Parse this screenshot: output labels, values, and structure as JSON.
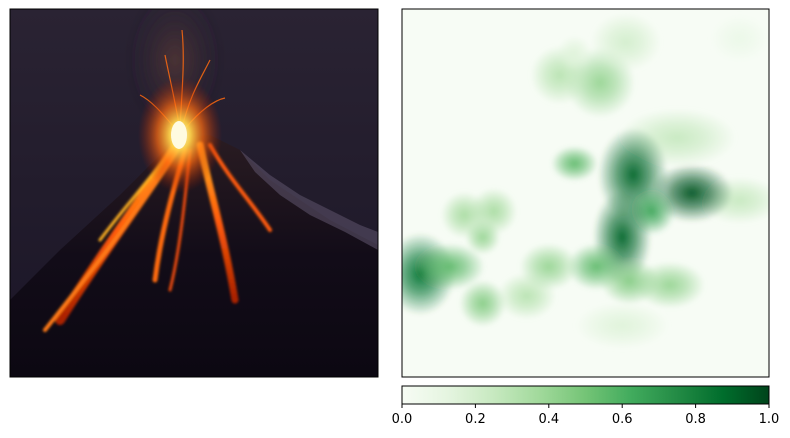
{
  "chart_data": [
    {
      "type": "image",
      "description_visible": false,
      "axes_ticks": false,
      "frame": true
    },
    {
      "type": "heatmap",
      "colormap": "Greens",
      "axes_ticks": false,
      "frame": true,
      "value_range": [
        0,
        1
      ],
      "blobs": [
        {
          "cx": 0.54,
          "cy": 0.2,
          "sx": 0.06,
          "sy": 0.06,
          "v": 0.4
        },
        {
          "cx": 0.43,
          "cy": 0.18,
          "sx": 0.05,
          "sy": 0.05,
          "v": 0.3
        },
        {
          "cx": 0.61,
          "cy": 0.09,
          "sx": 0.06,
          "sy": 0.05,
          "v": 0.2
        },
        {
          "cx": 0.47,
          "cy": 0.12,
          "sx": 0.03,
          "sy": 0.03,
          "v": 0.15
        },
        {
          "cx": 0.92,
          "cy": 0.08,
          "sx": 0.05,
          "sy": 0.04,
          "v": 0.08
        },
        {
          "cx": 0.75,
          "cy": 0.35,
          "sx": 0.1,
          "sy": 0.05,
          "v": 0.25
        },
        {
          "cx": 0.92,
          "cy": 0.52,
          "sx": 0.07,
          "sy": 0.04,
          "v": 0.25
        },
        {
          "cx": 0.63,
          "cy": 0.45,
          "sx": 0.06,
          "sy": 0.08,
          "v": 0.9
        },
        {
          "cx": 0.47,
          "cy": 0.42,
          "sx": 0.04,
          "sy": 0.03,
          "v": 0.55
        },
        {
          "cx": 0.79,
          "cy": 0.5,
          "sx": 0.07,
          "sy": 0.05,
          "v": 0.95
        },
        {
          "cx": 0.68,
          "cy": 0.55,
          "sx": 0.04,
          "sy": 0.04,
          "v": 0.65
        },
        {
          "cx": 0.6,
          "cy": 0.62,
          "sx": 0.05,
          "sy": 0.08,
          "v": 0.9
        },
        {
          "cx": 0.53,
          "cy": 0.7,
          "sx": 0.05,
          "sy": 0.04,
          "v": 0.55
        },
        {
          "cx": 0.62,
          "cy": 0.74,
          "sx": 0.05,
          "sy": 0.04,
          "v": 0.45
        },
        {
          "cx": 0.73,
          "cy": 0.75,
          "sx": 0.06,
          "sy": 0.04,
          "v": 0.4
        },
        {
          "cx": 0.6,
          "cy": 0.86,
          "sx": 0.08,
          "sy": 0.04,
          "v": 0.15
        },
        {
          "cx": 0.05,
          "cy": 0.72,
          "sx": 0.06,
          "sy": 0.07,
          "v": 0.85
        },
        {
          "cx": 0.13,
          "cy": 0.7,
          "sx": 0.06,
          "sy": 0.04,
          "v": 0.55
        },
        {
          "cx": 0.17,
          "cy": 0.56,
          "sx": 0.04,
          "sy": 0.04,
          "v": 0.35
        },
        {
          "cx": 0.25,
          "cy": 0.55,
          "sx": 0.04,
          "sy": 0.04,
          "v": 0.35
        },
        {
          "cx": 0.22,
          "cy": 0.8,
          "sx": 0.04,
          "sy": 0.04,
          "v": 0.45
        },
        {
          "cx": 0.34,
          "cy": 0.78,
          "sx": 0.05,
          "sy": 0.04,
          "v": 0.3
        },
        {
          "cx": 0.4,
          "cy": 0.7,
          "sx": 0.05,
          "sy": 0.04,
          "v": 0.4
        },
        {
          "cx": 0.22,
          "cy": 0.62,
          "sx": 0.03,
          "sy": 0.03,
          "v": 0.4
        }
      ]
    },
    {
      "type": "colorbar",
      "colormap": "Greens",
      "orientation": "horizontal",
      "range": [
        0,
        1
      ],
      "ticks": [
        0.0,
        0.2,
        0.4,
        0.6,
        0.8,
        1.0
      ],
      "tick_labels": [
        "0.0",
        "0.2",
        "0.4",
        "0.6",
        "0.8",
        "1.0"
      ]
    }
  ],
  "colors": {
    "greens_stops": [
      "#f7fcf5",
      "#e5f5e0",
      "#c7e9c0",
      "#a1d99b",
      "#74c476",
      "#41ab5d",
      "#238b45",
      "#006d2c",
      "#00441b"
    ],
    "frame": "#000000"
  }
}
